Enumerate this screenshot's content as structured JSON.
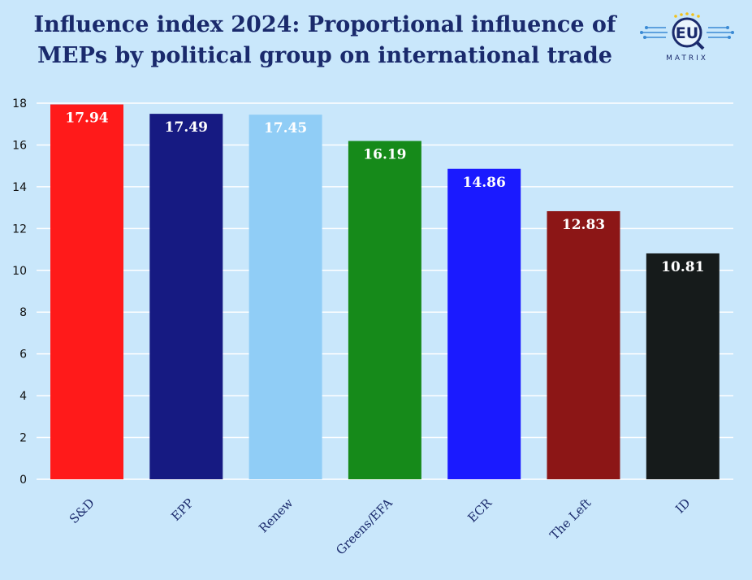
{
  "title_line1": "Influence index 2024: Proportional influence of",
  "title_line2": "MEPs by political group on international trade",
  "logo": {
    "main": "EU",
    "sub": "MATRIX"
  },
  "chart_data": {
    "type": "bar",
    "title": "Influence index 2024: Proportional influence of MEPs by political group on international trade",
    "categories": [
      "S&D",
      "EPP",
      "Renew",
      "Greens/EFA",
      "ECR",
      "The Left",
      "ID"
    ],
    "values": [
      17.94,
      17.49,
      17.45,
      16.19,
      14.86,
      12.83,
      10.81
    ],
    "value_labels": [
      "17.94",
      "17.49",
      "17.45",
      "16.19",
      "14.86",
      "12.83",
      "10.81"
    ],
    "colors": [
      "#ff1a1a",
      "#161a82",
      "#90cdf6",
      "#168a1a",
      "#1a1aff",
      "#8c1616",
      "#161b1b"
    ],
    "yticks": [
      0,
      2,
      4,
      6,
      8,
      10,
      12,
      14,
      16,
      18
    ],
    "ylim": [
      0,
      18
    ],
    "grid": true,
    "xlabel": "",
    "ylabel": ""
  }
}
